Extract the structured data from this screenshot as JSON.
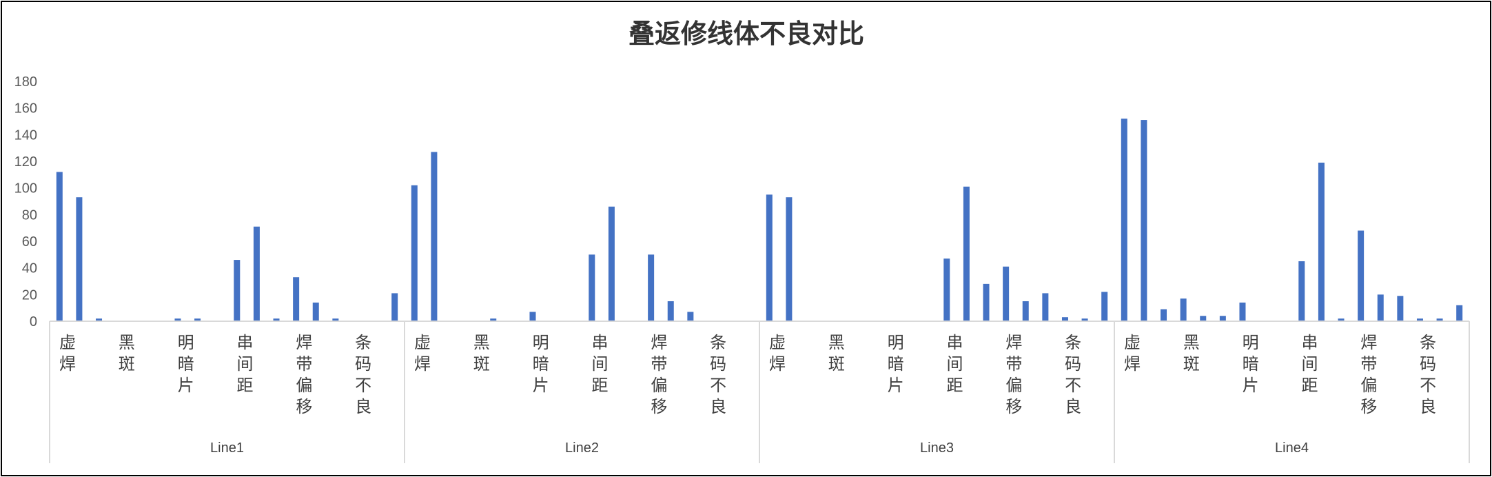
{
  "chart_data": {
    "type": "bar",
    "title": "叠返修线体不良对比",
    "xlabel": "",
    "ylabel": "",
    "ylim": [
      0,
      180
    ],
    "yticks": [
      0,
      20,
      40,
      60,
      80,
      100,
      120,
      140,
      160,
      180
    ],
    "grid": false,
    "bar_color": "#4472C4",
    "category_labels": [
      "虚焊",
      "黑斑",
      "明暗片",
      "串间距",
      "焊带偏移",
      "条码不良"
    ],
    "groups": [
      {
        "name": "Line1",
        "values": [
          112,
          93,
          2,
          0,
          0,
          0,
          2,
          2,
          0,
          46,
          71,
          2,
          33,
          14,
          2,
          0,
          0,
          21
        ]
      },
      {
        "name": "Line2",
        "values": [
          102,
          127,
          0,
          0,
          2,
          0,
          7,
          0,
          0,
          50,
          86,
          0,
          50,
          15,
          7,
          0,
          0,
          0
        ]
      },
      {
        "name": "Line3",
        "values": [
          95,
          93,
          0,
          0,
          0,
          0,
          0,
          0,
          0,
          47,
          101,
          28,
          41,
          15,
          21,
          3,
          2,
          22
        ]
      },
      {
        "name": "Line4",
        "values": [
          152,
          151,
          9,
          17,
          4,
          4,
          14,
          0,
          0,
          45,
          119,
          2,
          68,
          20,
          19,
          2,
          2,
          12
        ]
      }
    ]
  }
}
